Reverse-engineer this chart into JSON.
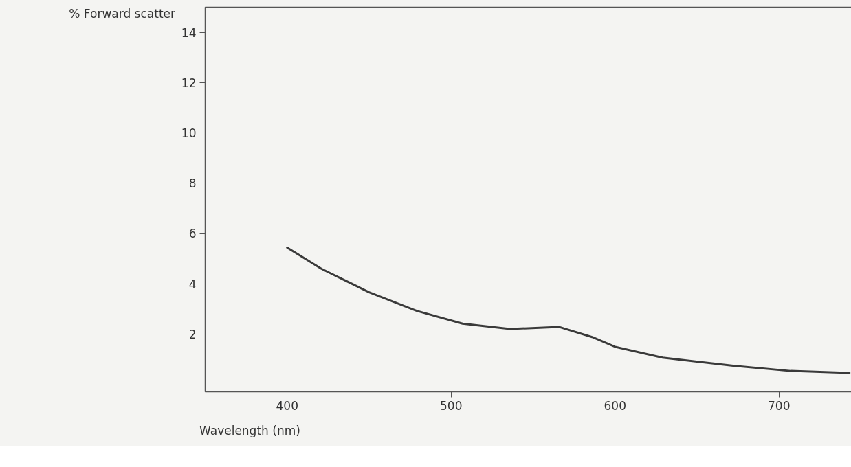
{
  "chart_data": {
    "type": "line",
    "ylabel": "% Forward scatter",
    "xlabel": "Wavelength (nm)",
    "x": [
      400,
      421,
      450,
      479,
      507,
      536,
      554,
      566,
      586,
      600,
      629,
      672,
      707,
      743
    ],
    "series": [
      {
        "color": "#3a3a3a",
        "values": [
          5.44,
          4.59,
          3.66,
          2.92,
          2.41,
          2.2,
          2.25,
          2.28,
          1.88,
          1.49,
          1.06,
          0.74,
          0.53,
          0.45
        ]
      }
    ],
    "xlim": [
      350,
      750
    ],
    "ylim": [
      -0.3,
      15
    ],
    "xticks": [
      400,
      500,
      600,
      700
    ],
    "yticks": [
      2,
      4,
      6,
      8,
      10,
      12,
      14
    ],
    "grid": false,
    "marker": "none",
    "line_style": "solid"
  }
}
